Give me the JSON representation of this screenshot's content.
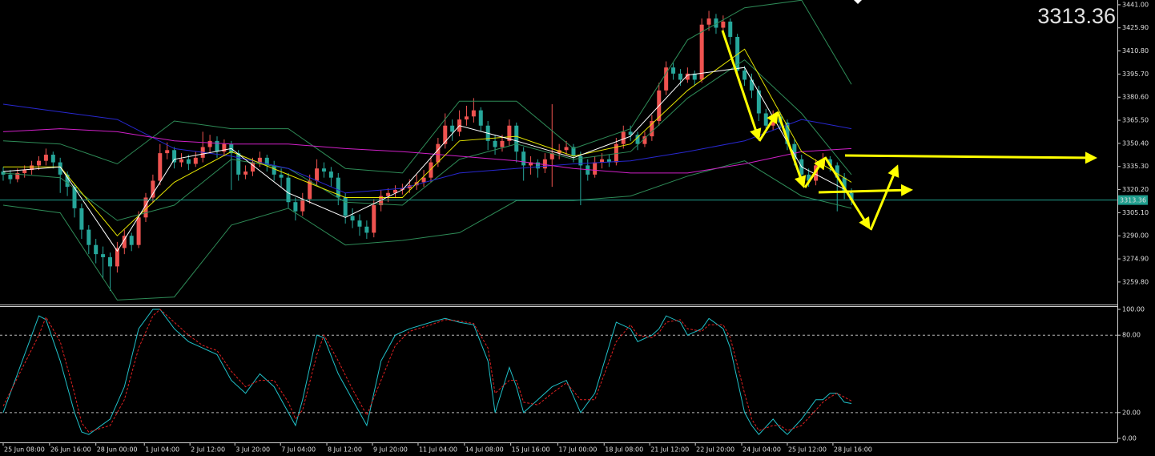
{
  "chart_data": [
    {
      "type": "candlestick",
      "up_color": "#ef5350",
      "down_color": "#26a69a",
      "last_price": 3313.36,
      "last_price_color": "#1f9e8e",
      "big_price_color": "#66ff33",
      "xlim": [
        -0.45,
        156.3
      ],
      "ylim": [
        3245.6,
        3444.1
      ],
      "yticks": [
        {
          "value": 3441,
          "label": "3441.00"
        },
        {
          "value": 3425.9,
          "label": "3425.90"
        },
        {
          "value": 3410.8,
          "label": "3410.80"
        },
        {
          "value": 3395.7,
          "label": "3395.70"
        },
        {
          "value": 3380.6,
          "label": "3380.60"
        },
        {
          "value": 3365.5,
          "label": "3365.50"
        },
        {
          "value": 3350.4,
          "label": "3350.40"
        },
        {
          "value": 3335.3,
          "label": "3335.30"
        },
        {
          "value": 3320.2,
          "label": "3320.20"
        },
        {
          "value": 3305.1,
          "label": "3305.10"
        },
        {
          "value": 3290,
          "label": "3290.00"
        },
        {
          "value": 3274.9,
          "label": "3274.90"
        },
        {
          "value": 3259.8,
          "label": "3259.80"
        }
      ],
      "candles": [
        [
          3332,
          3335,
          3326,
          3330
        ],
        [
          3330,
          3333,
          3324,
          3327
        ],
        [
          3327,
          3334,
          3325,
          3331
        ],
        [
          3331,
          3336,
          3328,
          3333
        ],
        [
          3333,
          3339,
          3330,
          3336
        ],
        [
          3336,
          3342,
          3333,
          3339
        ],
        [
          3339,
          3347,
          3336,
          3343
        ],
        [
          3343,
          3345,
          3334,
          3338
        ],
        [
          3338,
          3341,
          3318,
          3330
        ],
        [
          3330,
          3332,
          3316,
          3322
        ],
        [
          3322,
          3324,
          3302,
          3308
        ],
        [
          3308,
          3311,
          3288,
          3294
        ],
        [
          3294,
          3297,
          3278,
          3284
        ],
        [
          3284,
          3288,
          3272,
          3278
        ],
        [
          3278,
          3283,
          3262,
          3276
        ],
        [
          3276,
          3279,
          3254,
          3270
        ],
        [
          3270,
          3286,
          3266,
          3282
        ],
        [
          3282,
          3294,
          3278,
          3290
        ],
        [
          3290,
          3292,
          3280,
          3284
        ],
        [
          3284,
          3306,
          3282,
          3302
        ],
        [
          3302,
          3318,
          3299,
          3315
        ],
        [
          3315,
          3330,
          3312,
          3326
        ],
        [
          3326,
          3350,
          3323,
          3344
        ],
        [
          3344,
          3351,
          3340,
          3346
        ],
        [
          3346,
          3348,
          3334,
          3338
        ],
        [
          3338,
          3344,
          3335,
          3340
        ],
        [
          3340,
          3343,
          3333,
          3337
        ],
        [
          3337,
          3345,
          3335,
          3341
        ],
        [
          3341,
          3358,
          3338,
          3348
        ],
        [
          3348,
          3356,
          3344,
          3352
        ],
        [
          3352,
          3355,
          3341,
          3345
        ],
        [
          3345,
          3353,
          3342,
          3350
        ],
        [
          3350,
          3352,
          3320,
          3344
        ],
        [
          3344,
          3346,
          3326,
          3330
        ],
        [
          3330,
          3336,
          3327,
          3332
        ],
        [
          3332,
          3341,
          3329,
          3338
        ],
        [
          3338,
          3345,
          3335,
          3341
        ],
        [
          3341,
          3343,
          3332,
          3336
        ],
        [
          3336,
          3339,
          3326,
          3330
        ],
        [
          3330,
          3334,
          3322,
          3328
        ],
        [
          3328,
          3331,
          3308,
          3312
        ],
        [
          3312,
          3315,
          3300,
          3306
        ],
        [
          3306,
          3318,
          3303,
          3314
        ],
        [
          3314,
          3330,
          3311,
          3326
        ],
        [
          3326,
          3340,
          3323,
          3334
        ],
        [
          3334,
          3338,
          3328,
          3332
        ],
        [
          3332,
          3335,
          3322,
          3328
        ],
        [
          3328,
          3331,
          3310,
          3315
        ],
        [
          3315,
          3318,
          3298,
          3303
        ],
        [
          3303,
          3308,
          3295,
          3300
        ],
        [
          3300,
          3304,
          3290,
          3296
        ],
        [
          3296,
          3300,
          3288,
          3292
        ],
        [
          3292,
          3314,
          3289,
          3310
        ],
        [
          3310,
          3320,
          3306,
          3316
        ],
        [
          3316,
          3321,
          3312,
          3318
        ],
        [
          3318,
          3323,
          3315,
          3320
        ],
        [
          3320,
          3324,
          3317,
          3321
        ],
        [
          3321,
          3327,
          3318,
          3323
        ],
        [
          3323,
          3330,
          3320,
          3325
        ],
        [
          3325,
          3333,
          3322,
          3328
        ],
        [
          3328,
          3342,
          3325,
          3338
        ],
        [
          3338,
          3354,
          3335,
          3350
        ],
        [
          3350,
          3370,
          3347,
          3362
        ],
        [
          3362,
          3366,
          3352,
          3358
        ],
        [
          3358,
          3372,
          3355,
          3366
        ],
        [
          3366,
          3375,
          3362,
          3368
        ],
        [
          3368,
          3380,
          3364,
          3372
        ],
        [
          3372,
          3374,
          3358,
          3362
        ],
        [
          3362,
          3365,
          3346,
          3352
        ],
        [
          3352,
          3356,
          3343,
          3348
        ],
        [
          3348,
          3356,
          3345,
          3352
        ],
        [
          3352,
          3366,
          3349,
          3362
        ],
        [
          3362,
          3364,
          3338,
          3345
        ],
        [
          3345,
          3348,
          3326,
          3336
        ],
        [
          3336,
          3342,
          3330,
          3338
        ],
        [
          3338,
          3340,
          3328,
          3334
        ],
        [
          3334,
          3344,
          3331,
          3340
        ],
        [
          3340,
          3376,
          3322,
          3344
        ],
        [
          3344,
          3350,
          3340,
          3346
        ],
        [
          3346,
          3352,
          3343,
          3348
        ],
        [
          3348,
          3350,
          3338,
          3342
        ],
        [
          3342,
          3345,
          3310,
          3336
        ],
        [
          3336,
          3340,
          3326,
          3330
        ],
        [
          3330,
          3342,
          3328,
          3338
        ],
        [
          3338,
          3344,
          3334,
          3340
        ],
        [
          3340,
          3343,
          3335,
          3338
        ],
        [
          3338,
          3354,
          3336,
          3350
        ],
        [
          3350,
          3362,
          3347,
          3358
        ],
        [
          3358,
          3362,
          3352,
          3356
        ],
        [
          3356,
          3358,
          3346,
          3350
        ],
        [
          3350,
          3358,
          3348,
          3355
        ],
        [
          3355,
          3369,
          3352,
          3365
        ],
        [
          3365,
          3390,
          3362,
          3385
        ],
        [
          3385,
          3404,
          3382,
          3400
        ],
        [
          3400,
          3403,
          3392,
          3396
        ],
        [
          3396,
          3399,
          3388,
          3392
        ],
        [
          3392,
          3400,
          3390,
          3396
        ],
        [
          3396,
          3398,
          3388,
          3392
        ],
        [
          3392,
          3432,
          3390,
          3428
        ],
        [
          3428,
          3437,
          3424,
          3432
        ],
        [
          3432,
          3435,
          3422,
          3426
        ],
        [
          3426,
          3434,
          3423,
          3430
        ],
        [
          3430,
          3432,
          3415,
          3420
        ],
        [
          3420,
          3422,
          3394,
          3398
        ],
        [
          3398,
          3401,
          3388,
          3392
        ],
        [
          3392,
          3396,
          3380,
          3385
        ],
        [
          3385,
          3388,
          3365,
          3370
        ],
        [
          3370,
          3373,
          3358,
          3362
        ],
        [
          3362,
          3372,
          3359,
          3368
        ],
        [
          3368,
          3371,
          3360,
          3364
        ],
        [
          3364,
          3366,
          3346,
          3350
        ],
        [
          3350,
          3353,
          3336,
          3340
        ],
        [
          3340,
          3343,
          3326,
          3330
        ],
        [
          3330,
          3334,
          3322,
          3326
        ],
        [
          3326,
          3340,
          3323,
          3336
        ],
        [
          3336,
          3344,
          3333,
          3340
        ],
        [
          3340,
          3342,
          3332,
          3336
        ],
        [
          3336,
          3338,
          3306,
          3328
        ],
        [
          3328,
          3331,
          3314,
          3318
        ],
        [
          3318,
          3321,
          3310,
          3313.36
        ]
      ],
      "indicator_x": [
        0,
        8,
        16,
        24,
        32,
        40,
        48,
        56,
        64,
        72,
        80,
        88,
        96,
        104,
        112,
        119
      ],
      "indicators": [
        {
          "color": "#2e8b57",
          "values": [
            3352,
            3350,
            3337,
            3365,
            3360,
            3360,
            3334,
            3331,
            3378,
            3378,
            3347,
            3360,
            3418,
            3439,
            3444,
            3389
          ]
        },
        {
          "color": "#2e8b57",
          "values": [
            3331,
            3328,
            3300,
            3310,
            3340,
            3334,
            3312,
            3310,
            3340,
            3350,
            3340,
            3345,
            3380,
            3405,
            3370,
            3330
          ]
        },
        {
          "color": "#2e8b57",
          "values": [
            3310,
            3305,
            3248,
            3250,
            3297,
            3308,
            3284,
            3287,
            3292,
            3313,
            3313,
            3316,
            3329,
            3339,
            3316,
            3308
          ]
        },
        {
          "color": "#2828d0",
          "values": [
            3376,
            3371,
            3366,
            3347,
            3342,
            3334,
            3318,
            3321,
            3331,
            3334,
            3337,
            3339,
            3345,
            3352,
            3366,
            3360
          ]
        },
        {
          "color": "#d020c8",
          "values": [
            3358,
            3360,
            3358,
            3352,
            3350,
            3350,
            3347,
            3345,
            3342,
            3339,
            3334,
            3331,
            3331,
            3337,
            3345,
            3347
          ]
        },
        {
          "color": "#e6e600",
          "values": [
            3335,
            3335,
            3290,
            3325,
            3345,
            3330,
            3315,
            3315,
            3352,
            3355,
            3342,
            3350,
            3385,
            3412,
            3345,
            3325
          ]
        },
        {
          "color": "#ffffff",
          "values": [
            3332,
            3335,
            3280,
            3340,
            3347,
            3318,
            3302,
            3320,
            3362,
            3352,
            3341,
            3355,
            3395,
            3400,
            3335,
            3318
          ]
        }
      ]
    },
    {
      "type": "line",
      "xlim": [
        -0.45,
        156.3
      ],
      "ylim": [
        -3.1,
        102.5
      ],
      "yticks": [
        {
          "value": 100,
          "label": "100.00"
        },
        {
          "value": 80,
          "label": "80.00"
        },
        {
          "value": 20,
          "label": "20.00"
        },
        {
          "value": 0,
          "label": "0.00"
        }
      ],
      "levels": [
        80,
        20
      ],
      "xticks": [
        {
          "value": 0,
          "label": "25 Jun 08:00"
        },
        {
          "value": 6.5,
          "label": "26 Jun 16:00"
        },
        {
          "value": 13,
          "label": "28 Jun 00:00"
        },
        {
          "value": 19.8,
          "label": "1 Jul 04:00"
        },
        {
          "value": 26.2,
          "label": "2 Jul 12:00"
        },
        {
          "value": 32.5,
          "label": "3 Jul 20:00"
        },
        {
          "value": 38.9,
          "label": "7 Jul 04:00"
        },
        {
          "value": 45.4,
          "label": "8 Jul 12:00"
        },
        {
          "value": 51.8,
          "label": "9 Jul 20:00"
        },
        {
          "value": 58.2,
          "label": "11 Jul 04:00"
        },
        {
          "value": 64.7,
          "label": "14 Jul 08:00"
        },
        {
          "value": 71.2,
          "label": "15 Jul 16:00"
        },
        {
          "value": 77.8,
          "label": "17 Jul 00:00"
        },
        {
          "value": 84.3,
          "label": "18 Jul 08:00"
        },
        {
          "value": 90.7,
          "label": "21 Jul 12:00"
        },
        {
          "value": 97.1,
          "label": "22 Jul 20:00"
        },
        {
          "value": 103.6,
          "label": "24 Jul 04:00"
        },
        {
          "value": 110,
          "label": "25 Jul 12:00"
        },
        {
          "value": 116.4,
          "label": "28 Jul 16:00"
        }
      ],
      "x": [
        0,
        5,
        6,
        8,
        10,
        11,
        12,
        15,
        17,
        19,
        21,
        22,
        24,
        26,
        28,
        30,
        32,
        34,
        36,
        38,
        40,
        41,
        42,
        44,
        45,
        47,
        49,
        51,
        53,
        55,
        57,
        60,
        62,
        64,
        66,
        68,
        69,
        71,
        72,
        73,
        75,
        77,
        79,
        81,
        83,
        86,
        88,
        89,
        91,
        92,
        93,
        95,
        96,
        98,
        99,
        101,
        102,
        104,
        105,
        106,
        108,
        109,
        110,
        112,
        114,
        115,
        116,
        117,
        118,
        119
      ],
      "series": [
        {
          "color": "#20c0c8",
          "dashed": false,
          "values": [
            20,
            95,
            92,
            60,
            20,
            5,
            3,
            15,
            40,
            85,
            100,
            100,
            85,
            75,
            70,
            65,
            45,
            35,
            50,
            40,
            20,
            10,
            30,
            80,
            78,
            50,
            30,
            10,
            60,
            80,
            85,
            90,
            93,
            90,
            88,
            60,
            20,
            55,
            40,
            20,
            30,
            40,
            45,
            20,
            35,
            90,
            85,
            75,
            80,
            85,
            95,
            90,
            80,
            85,
            93,
            85,
            70,
            20,
            10,
            3,
            15,
            8,
            3,
            15,
            30,
            30,
            35,
            35,
            28,
            27
          ]
        },
        {
          "color": "#e02020",
          "dashed": true,
          "values": [
            25,
            80,
            94,
            75,
            35,
            12,
            5,
            10,
            30,
            70,
            95,
            100,
            90,
            80,
            72,
            68,
            52,
            40,
            45,
            45,
            28,
            15,
            22,
            65,
            80,
            60,
            38,
            18,
            45,
            72,
            83,
            88,
            92,
            91,
            89,
            70,
            35,
            45,
            45,
            28,
            26,
            35,
            43,
            30,
            30,
            75,
            88,
            80,
            78,
            82,
            90,
            92,
            85,
            83,
            88,
            88,
            78,
            35,
            15,
            6,
            10,
            10,
            6,
            10,
            22,
            28,
            32,
            35,
            32,
            29
          ]
        }
      ]
    }
  ]
}
